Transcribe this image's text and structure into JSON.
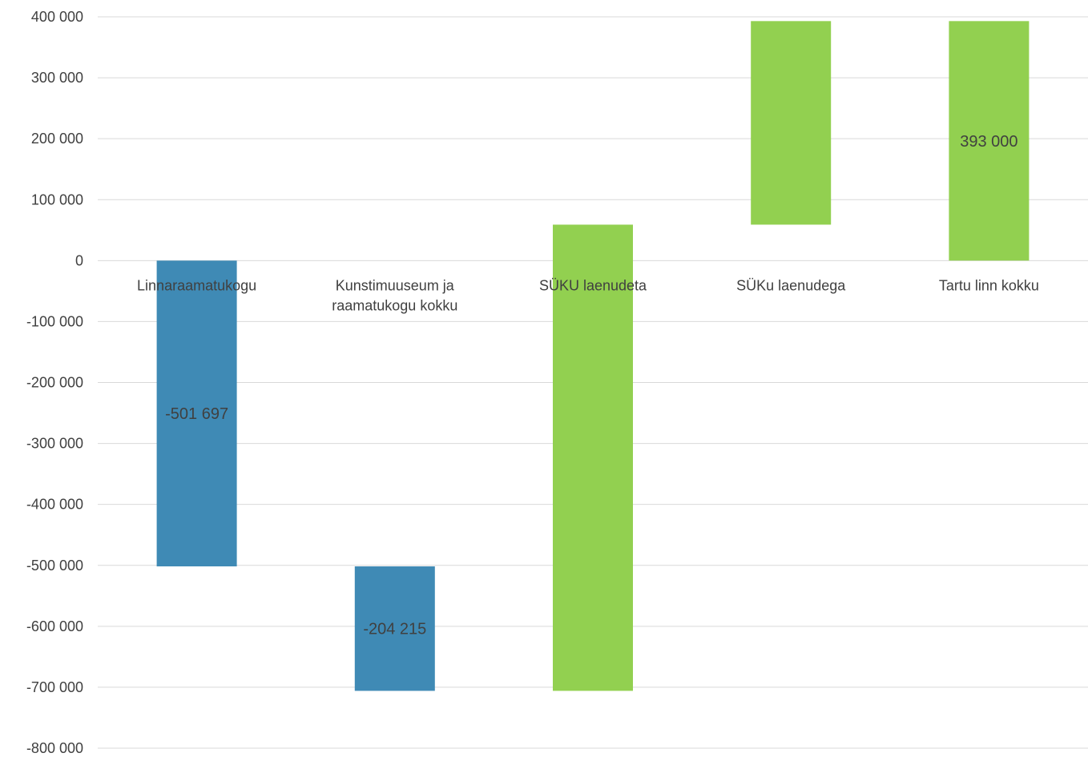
{
  "chart_data": {
    "type": "bar",
    "subtype": "waterfall",
    "categories": [
      "Linnaraamatukogu",
      "Kunstimuuseum ja raamatukogu kokku",
      "SÜKU laenudeta",
      "SÜKu laenudega",
      "Tartu linn kokku"
    ],
    "category_lines": [
      [
        "Linnaraamatukogu"
      ],
      [
        "Kunstimuuseum ja",
        "raamatukogu kokku"
      ],
      [
        "SÜKU laenudeta"
      ],
      [
        "SÜKu laenudega"
      ],
      [
        "Tartu linn kokku"
      ]
    ],
    "bars": [
      {
        "start": 0,
        "end": -501697,
        "color": "#3f8ab5",
        "label": "-501 697"
      },
      {
        "start": -501697,
        "end": -705912,
        "color": "#3f8ab5",
        "label": "-204 215"
      },
      {
        "start": -705912,
        "end": 59000,
        "color": "#92d050",
        "label": ""
      },
      {
        "start": 59000,
        "end": 393000,
        "color": "#92d050",
        "label": ""
      },
      {
        "start": 0,
        "end": 393000,
        "color": "#92d050",
        "label": "393 000"
      }
    ],
    "ylim": [
      -800000,
      400000
    ],
    "yticks": [
      400000,
      300000,
      200000,
      100000,
      0,
      -100000,
      -200000,
      -300000,
      -400000,
      -500000,
      -600000,
      -700000,
      -800000
    ],
    "ytick_labels": [
      "400 000",
      "300 000",
      "200 000",
      "100 000",
      "0",
      "-100 000",
      "-200 000",
      "-300 000",
      "-400 000",
      "-500 000",
      "-600 000",
      "-700 000",
      "-800 000"
    ],
    "grid": true,
    "colors": {
      "negative": "#3f8ab5",
      "positive": "#92d050",
      "grid": "#d9d9d9",
      "text": "#404040"
    }
  }
}
